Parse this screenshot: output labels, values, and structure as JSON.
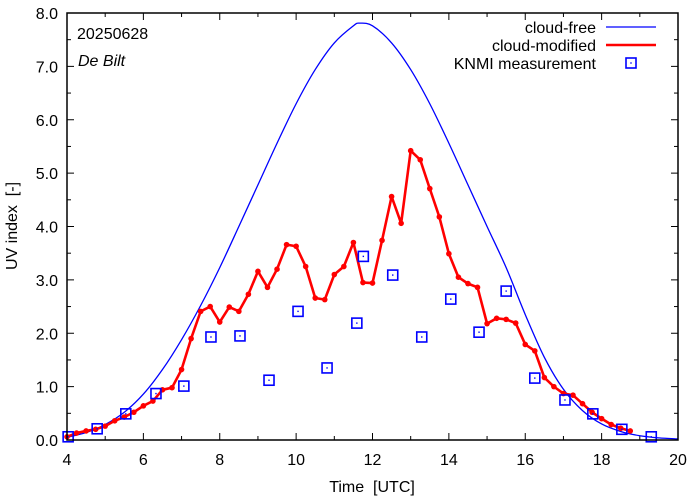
{
  "chart_data": {
    "type": "line",
    "title": "",
    "xlabel": "Time  [UTC]",
    "ylabel": "UV index  [-]",
    "xlim": [
      4,
      20
    ],
    "ylim": [
      0,
      8
    ],
    "x_ticks": [
      4,
      6,
      8,
      10,
      12,
      14,
      16,
      18,
      20
    ],
    "x_tick_labels": [
      "4",
      "6",
      "8",
      "10",
      "12",
      "14",
      "16",
      "18",
      "20"
    ],
    "y_ticks": [
      0,
      1,
      2,
      3,
      4,
      5,
      6,
      7,
      8
    ],
    "y_tick_labels": [
      "0.0",
      "1.0",
      "2.0",
      "3.0",
      "4.0",
      "5.0",
      "6.0",
      "7.0",
      "8.0"
    ],
    "grid": false,
    "legend_position": "top-right",
    "annotations": [
      {
        "text": "20250628",
        "style": "normal"
      },
      {
        "text": "De Bilt",
        "style": "italic"
      }
    ],
    "series": [
      {
        "name": "cloud-free",
        "kind": "line",
        "color": "#0000ff",
        "x": [
          4.0,
          4.5,
          5.0,
          5.5,
          6.0,
          6.5,
          7.0,
          7.5,
          8.0,
          8.5,
          9.0,
          9.5,
          10.0,
          10.5,
          11.0,
          11.5,
          11.67,
          12.0,
          12.5,
          13.0,
          13.5,
          14.0,
          14.5,
          15.0,
          15.5,
          16.0,
          16.5,
          17.0,
          17.5,
          18.0,
          18.5,
          19.0,
          19.5,
          20.0
        ],
        "y": [
          0.05,
          0.14,
          0.29,
          0.52,
          0.86,
          1.32,
          1.88,
          2.52,
          3.23,
          4.0,
          4.78,
          5.56,
          6.3,
          6.94,
          7.44,
          7.76,
          7.81,
          7.76,
          7.44,
          6.94,
          6.3,
          5.56,
          4.78,
          4.0,
          3.23,
          2.35,
          1.55,
          0.95,
          0.55,
          0.3,
          0.16,
          0.08,
          0.04,
          0.02
        ]
      },
      {
        "name": "cloud-modified",
        "kind": "line-markers",
        "color": "#ff0000",
        "x": [
          4.0,
          4.25,
          4.5,
          4.75,
          5.0,
          5.25,
          5.5,
          5.75,
          6.0,
          6.25,
          6.5,
          6.75,
          7.0,
          7.25,
          7.5,
          7.75,
          8.0,
          8.25,
          8.5,
          8.75,
          9.0,
          9.25,
          9.5,
          9.75,
          10.0,
          10.25,
          10.5,
          10.75,
          11.0,
          11.25,
          11.5,
          11.75,
          12.0,
          12.25,
          12.5,
          12.75,
          13.0,
          13.25,
          13.5,
          13.75,
          14.0,
          14.25,
          14.5,
          14.75,
          15.0,
          15.25,
          15.5,
          15.75,
          16.0,
          16.25,
          16.5,
          16.75,
          17.0,
          17.25,
          17.5,
          17.75,
          18.0,
          18.25,
          18.5,
          18.75
        ],
        "y": [
          0.06,
          0.13,
          0.17,
          0.2,
          0.26,
          0.36,
          0.43,
          0.52,
          0.64,
          0.73,
          0.94,
          0.98,
          1.32,
          1.9,
          2.41,
          2.5,
          2.21,
          2.49,
          2.41,
          2.73,
          3.16,
          2.86,
          3.2,
          3.66,
          3.63,
          3.25,
          2.66,
          2.63,
          3.1,
          3.25,
          3.7,
          2.95,
          2.94,
          3.74,
          4.56,
          4.06,
          5.42,
          5.25,
          4.71,
          4.18,
          3.49,
          3.05,
          2.93,
          2.86,
          2.18,
          2.28,
          2.26,
          2.19,
          1.79,
          1.67,
          1.17,
          1.0,
          0.87,
          0.84,
          0.68,
          0.52,
          0.4,
          0.29,
          0.22,
          0.17
        ]
      },
      {
        "name": "KNMI measurement",
        "kind": "markers",
        "color": "#0000ff",
        "x": [
          4.03,
          4.79,
          5.54,
          6.33,
          7.06,
          7.77,
          8.53,
          9.29,
          10.05,
          10.81,
          11.59,
          11.76,
          12.53,
          13.29,
          14.05,
          14.79,
          15.5,
          16.25,
          17.04,
          17.77,
          18.53,
          19.3
        ],
        "y": [
          0.06,
          0.21,
          0.49,
          0.87,
          1.01,
          1.93,
          1.95,
          1.12,
          2.41,
          1.35,
          2.19,
          3.44,
          3.09,
          1.93,
          2.64,
          2.02,
          2.79,
          1.16,
          0.75,
          0.49,
          0.2,
          0.06
        ]
      }
    ]
  }
}
